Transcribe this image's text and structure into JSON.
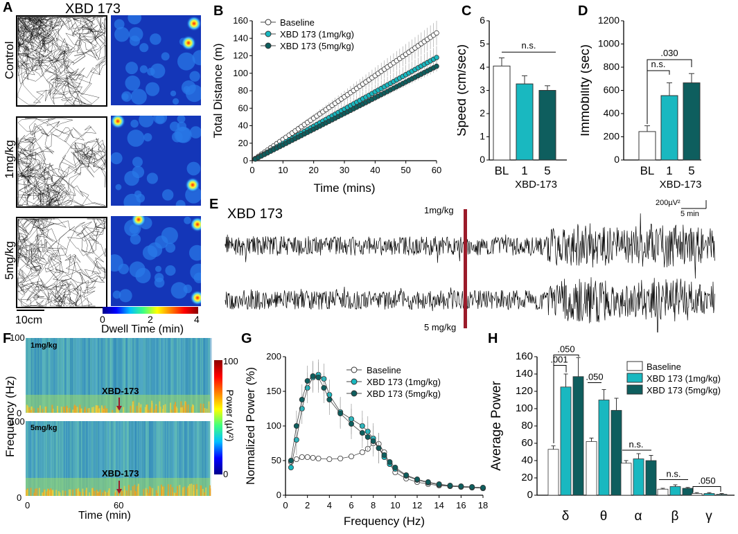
{
  "panels": {
    "A": "A",
    "B": "B",
    "C": "C",
    "D": "D",
    "E": "E",
    "F": "F",
    "G": "G",
    "H": "H"
  },
  "panelA": {
    "title": "XBD 173",
    "rows": [
      "Control",
      "1mg/kg",
      "5mg/kg"
    ],
    "scalebar": "10cm",
    "colorbar_ticks": [
      "0",
      "2",
      "4"
    ],
    "colorbar_label": "Dwell Time (min)"
  },
  "panelE": {
    "title": "XBD 173",
    "dose_top": "1mg/kg",
    "dose_bottom": "5 mg/kg",
    "scale_amp": "200µV²",
    "scale_time": "5 min",
    "marker_color": "#9b1b2a"
  },
  "panelF": {
    "panels": [
      {
        "label": "1mg/kg",
        "marker": "XBD-173"
      },
      {
        "label": "5mg/kg",
        "marker": "XBD-173"
      }
    ],
    "ylabel": "Frequency (Hz)",
    "xlabel": "Time (min)",
    "ytick_top": "100",
    "ytick_bottom": "0",
    "xticks": [
      "0",
      "60"
    ],
    "colorbar_ticks": [
      "100",
      "0"
    ],
    "colorbar_label": "Power (µV²)"
  },
  "colors": {
    "baseline": "#ffffff",
    "low": "#19b8c0",
    "high": "#0e5e5e"
  },
  "chart_data": [
    {
      "id": "B",
      "type": "line",
      "xlabel": "Time (mins)",
      "ylabel": "Total Distance (m)",
      "xlim": [
        0,
        60
      ],
      "ylim": [
        0,
        160
      ],
      "xticks": [
        0,
        10,
        20,
        30,
        40,
        50,
        60
      ],
      "yticks": [
        0,
        20,
        40,
        60,
        80,
        100,
        120,
        140,
        160
      ],
      "series": [
        {
          "name": "Baseline",
          "start": 2.4,
          "end": 146,
          "err_end": 14
        },
        {
          "name": "XBD 173 (1mg/kg)",
          "start": 2.0,
          "end": 118,
          "err_end": 13
        },
        {
          "name": "XBD 173 (5mg/kg)",
          "start": 1.8,
          "end": 108,
          "err_end": 6
        }
      ]
    },
    {
      "id": "C",
      "type": "bar",
      "ylabel": "Speed (cm/sec)",
      "categories": [
        "BL",
        "1",
        "5"
      ],
      "group_label": "XBD-173",
      "values": [
        4.05,
        3.28,
        3.0
      ],
      "errors": [
        0.35,
        0.35,
        0.2
      ],
      "ylim": [
        0,
        6
      ],
      "yticks": [
        0,
        1,
        2,
        3,
        4,
        5,
        6
      ],
      "annotations": [
        "n.s."
      ]
    },
    {
      "id": "D",
      "type": "bar",
      "ylabel": "Immobility (sec)",
      "categories": [
        "BL",
        "1",
        "5"
      ],
      "group_label": "XBD-173",
      "values": [
        245,
        555,
        665
      ],
      "errors": [
        50,
        110,
        80
      ],
      "ylim": [
        0,
        1200
      ],
      "yticks": [
        0,
        200,
        400,
        600,
        800,
        1000,
        1200
      ],
      "annotations": [
        "n.s.",
        ".030"
      ]
    },
    {
      "id": "G",
      "type": "line",
      "xlabel": "Frequency (Hz)",
      "ylabel": "Normalized Power (%)",
      "xlim": [
        0,
        18
      ],
      "ylim": [
        0,
        200
      ],
      "xticks": [
        0,
        2,
        4,
        6,
        8,
        10,
        12,
        14,
        16,
        18
      ],
      "yticks": [
        0,
        50,
        100,
        150,
        200
      ],
      "series": [
        {
          "name": "Baseline",
          "x": [
            0.5,
            1,
            1.5,
            2,
            2.5,
            3,
            4,
            5,
            6,
            7,
            7.5,
            8,
            8.5,
            9,
            9.5,
            10,
            11,
            12,
            13,
            14,
            15,
            16,
            17,
            18
          ],
          "y": [
            48,
            52,
            55,
            55,
            54,
            53,
            52,
            53,
            56,
            62,
            67,
            75,
            74,
            62,
            45,
            33,
            24,
            19,
            16,
            14,
            13,
            12,
            11,
            10
          ]
        },
        {
          "name": "XBD 173 (1mg/kg)",
          "x": [
            0.5,
            1,
            1.5,
            2,
            2.5,
            3,
            3.5,
            4,
            5,
            6,
            7,
            7.5,
            8,
            8.5,
            9,
            9.5,
            10,
            11,
            12,
            13,
            14,
            15,
            16,
            17,
            18
          ],
          "y": [
            40,
            80,
            125,
            155,
            170,
            174,
            168,
            145,
            120,
            110,
            100,
            92,
            82,
            68,
            55,
            45,
            38,
            28,
            22,
            18,
            15,
            13,
            12,
            11,
            10
          ]
        },
        {
          "name": "XBD 173 (5mg/kg)",
          "x": [
            0.5,
            1,
            1.5,
            2,
            2.5,
            3,
            3.5,
            4,
            5,
            6,
            7,
            7.5,
            8,
            8.5,
            9,
            9.5,
            10,
            11,
            12,
            13,
            14,
            15,
            16,
            17,
            18
          ],
          "y": [
            50,
            100,
            138,
            165,
            172,
            170,
            155,
            138,
            118,
            103,
            90,
            84,
            78,
            68,
            58,
            48,
            40,
            29,
            23,
            19,
            16,
            14,
            13,
            12,
            11
          ]
        }
      ]
    },
    {
      "id": "H",
      "type": "bar",
      "ylabel": "Average Power",
      "categories": [
        "δ",
        "θ",
        "α",
        "β",
        "γ"
      ],
      "ylim": [
        0,
        160
      ],
      "yticks": [
        0,
        20,
        40,
        60,
        80,
        100,
        120,
        140,
        160
      ],
      "series": [
        {
          "name": "Baseline",
          "values": [
            53,
            62,
            37,
            7,
            2
          ],
          "errors": [
            4,
            4,
            3,
            1,
            1
          ]
        },
        {
          "name": "XBD 173 (1mg/kg)",
          "values": [
            125,
            110,
            42,
            10,
            2
          ],
          "errors": [
            15,
            12,
            6,
            2,
            1
          ]
        },
        {
          "name": "XBD 173 (5mg/kg)",
          "values": [
            137,
            98,
            40,
            8,
            1
          ],
          "errors": [
            22,
            14,
            6,
            1,
            1
          ]
        }
      ],
      "annotations": [
        ".001",
        ".050",
        ".050",
        "n.s.",
        "n.s.",
        ".050"
      ]
    }
  ]
}
